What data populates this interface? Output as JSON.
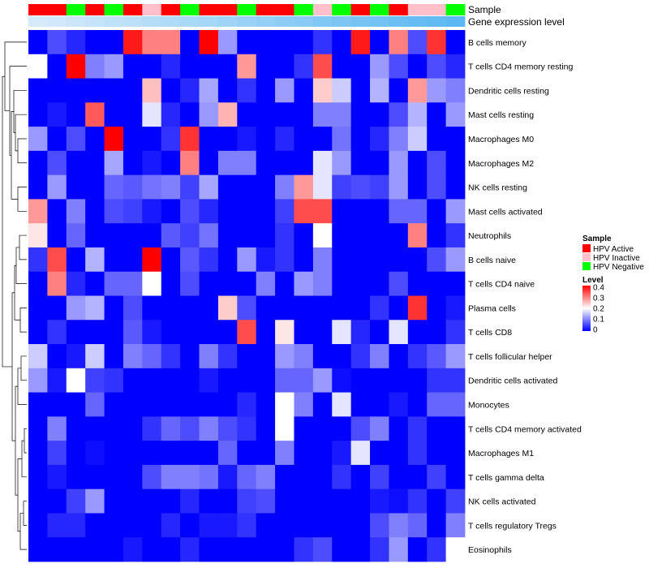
{
  "chart_data": {
    "type": "heatmap",
    "annotation_tracks": [
      {
        "label": "Sample",
        "values": [
          "HPV Active",
          "HPV Active",
          "HPV Negative",
          "HPV Active",
          "HPV Negative",
          "HPV Active",
          "HPV Inactive",
          "HPV Active",
          "HPV Negative",
          "HPV Active",
          "HPV Active",
          "HPV Negative",
          "HPV Active",
          "HPV Active",
          "HPV Negative",
          "HPV Inactive",
          "HPV Negative",
          "HPV Active",
          "HPV Negative",
          "HPV Active",
          "HPV Inactive",
          "HPV Inactive",
          "HPV Negative"
        ]
      },
      {
        "label": "Gene expression level",
        "values": [
          0,
          0.04,
          0.09,
          0.13,
          0.18,
          0.22,
          0.27,
          0.31,
          0.36,
          0.4,
          0.45,
          0.5,
          0.54,
          0.59,
          0.63,
          0.68,
          0.72,
          0.77,
          0.81,
          0.86,
          0.9,
          0.95,
          1
        ]
      }
    ],
    "rows": [
      "B cells memory",
      "T cells CD4 memory resting",
      "Dendritic cells resting",
      "Mast cells resting",
      "Macrophages M0",
      "Macrophages M2",
      "NK cells resting",
      "Mast cells activated",
      "Neutrophils",
      "B cells naive",
      "T cells CD4 naive",
      "Plasma cells",
      "T cells CD8",
      "T cells follicular helper",
      "Dendritic cells activated",
      "Monocytes",
      "T cells CD4 memory activated",
      "Macrophages M1",
      "T cells gamma delta",
      "NK cells activated",
      "T cells regulatory  Tregs",
      "Eosinophils"
    ],
    "values": [
      [
        0,
        0.06,
        0.03,
        0,
        0,
        0.38,
        0.3,
        0.3,
        0,
        0.4,
        0.12,
        0,
        0,
        0,
        0,
        0.04,
        0,
        0.38,
        0,
        0.3,
        0.06,
        0.36,
        0
      ],
      [
        0.2,
        0,
        0.4,
        0.1,
        0.12,
        0,
        0,
        0.03,
        0,
        0,
        0,
        0.28,
        0,
        0,
        0.04,
        0.34,
        0,
        0,
        0.12,
        0.06,
        0,
        0.06,
        0.03
      ],
      [
        0,
        0,
        0,
        0,
        0,
        0,
        0.25,
        0,
        0.03,
        0.13,
        0,
        0.04,
        0,
        0.12,
        0,
        0.24,
        0.16,
        0,
        0.14,
        0,
        0.28,
        0.12,
        0.1
      ],
      [
        0,
        0.02,
        0,
        0.33,
        0,
        0,
        0.18,
        0.03,
        0,
        0.12,
        0.26,
        0,
        0,
        0,
        0,
        0.1,
        0.1,
        0,
        0,
        0.06,
        0.14,
        0,
        0.12
      ],
      [
        0.12,
        0,
        0.06,
        0,
        0.4,
        0,
        0,
        0.04,
        0.36,
        0,
        0,
        0.02,
        0,
        0.03,
        0,
        0,
        0.09,
        0,
        0.03,
        0.1,
        0.16,
        0,
        0
      ],
      [
        0,
        0.06,
        0,
        0,
        0.13,
        0,
        0.02,
        0,
        0.3,
        0,
        0.1,
        0.1,
        0,
        0,
        0,
        0.18,
        0.12,
        0,
        0,
        0.12,
        0,
        0.06,
        0
      ],
      [
        0,
        0.12,
        0,
        0,
        0.08,
        0.07,
        0.09,
        0.1,
        0.05,
        0.13,
        0,
        0,
        0,
        0.1,
        0.28,
        0.18,
        0.05,
        0.06,
        0.05,
        0.12,
        0,
        0.06,
        0
      ],
      [
        0.28,
        0,
        0.1,
        0,
        0.06,
        0.05,
        0.02,
        0,
        0.06,
        0.03,
        0,
        0,
        0,
        0.05,
        0.34,
        0.34,
        0,
        0,
        0,
        0.08,
        0.08,
        0,
        0.12
      ],
      [
        0.22,
        0,
        0.08,
        0,
        0,
        0,
        0,
        0.07,
        0.05,
        0.09,
        0,
        0,
        0,
        0.04,
        0,
        0.2,
        0,
        0,
        0,
        0,
        0.3,
        0,
        0.04
      ],
      [
        0.04,
        0.34,
        0,
        0.14,
        0,
        0,
        0.4,
        0,
        0.07,
        0.04,
        0,
        0.12,
        0.02,
        0.04,
        0,
        0.1,
        0,
        0,
        0,
        0,
        0,
        0.06,
        0.12
      ],
      [
        0,
        0.3,
        0.03,
        0,
        0.08,
        0.08,
        0.2,
        0,
        0.06,
        0,
        0,
        0,
        0.1,
        0,
        0.12,
        0.1,
        0,
        0,
        0,
        0.06,
        0,
        0,
        0
      ],
      [
        0,
        0,
        0.12,
        0.14,
        0,
        0.06,
        0,
        0,
        0,
        0,
        0.24,
        0.06,
        0,
        0,
        0,
        0,
        0,
        0,
        0.04,
        0,
        0.36,
        0,
        0.02
      ],
      [
        0,
        0.04,
        0,
        0,
        0,
        0.07,
        0.02,
        0,
        0,
        0,
        0,
        0.34,
        0,
        0.22,
        0,
        0,
        0.18,
        0.03,
        0,
        0.18,
        0,
        0,
        0.04
      ],
      [
        0.16,
        0,
        0.02,
        0.16,
        0,
        0.1,
        0.08,
        0.04,
        0,
        0.1,
        0.04,
        0,
        0,
        0.12,
        0.1,
        0,
        0,
        0.04,
        0.1,
        0,
        0.04,
        0.07,
        0.12
      ],
      [
        0.12,
        0.02,
        0.2,
        0.05,
        0.04,
        0,
        0,
        0,
        0,
        0.02,
        0,
        0,
        0,
        0.08,
        0.08,
        0.12,
        0.01,
        0,
        0,
        0,
        0,
        0.04,
        0.04
      ],
      [
        0,
        0,
        0,
        0.08,
        0,
        0,
        0,
        0,
        0,
        0,
        0,
        0.03,
        0,
        0.2,
        0.1,
        0,
        0.18,
        0,
        0,
        0.02,
        0,
        0.08,
        0.08
      ],
      [
        0,
        0.1,
        0,
        0,
        0,
        0,
        0.04,
        0.08,
        0.06,
        0.1,
        0.06,
        0.04,
        0,
        0.2,
        0,
        0,
        0,
        0.06,
        0.1,
        0,
        0.04,
        0,
        0
      ],
      [
        0,
        0.05,
        0,
        0.01,
        0,
        0,
        0,
        0,
        0,
        0,
        0.08,
        0,
        0,
        0.1,
        0,
        0,
        0.02,
        0.18,
        0,
        0,
        0.04,
        0,
        0
      ],
      [
        0,
        0.02,
        0,
        0,
        0,
        0,
        0.06,
        0.1,
        0.1,
        0.09,
        0.02,
        0.08,
        0.1,
        0,
        0,
        0,
        0.04,
        0,
        0.05,
        0,
        0,
        0.05,
        0
      ],
      [
        0,
        0,
        0.05,
        0.12,
        0,
        0,
        0,
        0,
        0.03,
        0,
        0,
        0.05,
        0.06,
        0,
        0,
        0,
        0,
        0,
        0.02,
        0.01,
        0.04,
        0,
        0.05
      ],
      [
        0,
        0.03,
        0.03,
        0,
        0,
        0,
        0,
        0.03,
        0,
        0.02,
        0.02,
        0.04,
        0,
        0,
        0,
        0,
        0,
        0,
        0.06,
        0.1,
        0.08,
        0,
        0.1
      ],
      [
        0,
        0,
        0,
        0,
        0,
        0.02,
        0,
        0,
        0.03,
        0,
        0,
        0,
        0,
        0,
        0.04,
        0.06,
        0,
        0,
        0.04,
        0.12,
        0,
        0.04,
        0.2
      ]
    ],
    "legend_sample": {
      "title": "Sample",
      "entries": [
        {
          "label": "HPV Active",
          "color": "#ff0000"
        },
        {
          "label": "HPV Inactive",
          "color": "#ffc0cb"
        },
        {
          "label": "HPV Negative",
          "color": "#00ff00"
        }
      ]
    },
    "legend_level": {
      "title": "Level",
      "ticks": [
        "0.4",
        "0.3",
        "0.2",
        "0.1",
        "0"
      ],
      "range": [
        0,
        0.4
      ]
    },
    "colors": {
      "low": "#0000ff",
      "mid": "#ffffff",
      "high": "#ff0000",
      "expr_low": "#d6ebfa",
      "expr_high": "#5bb8f2"
    },
    "dendrogram": "rows, left side"
  }
}
